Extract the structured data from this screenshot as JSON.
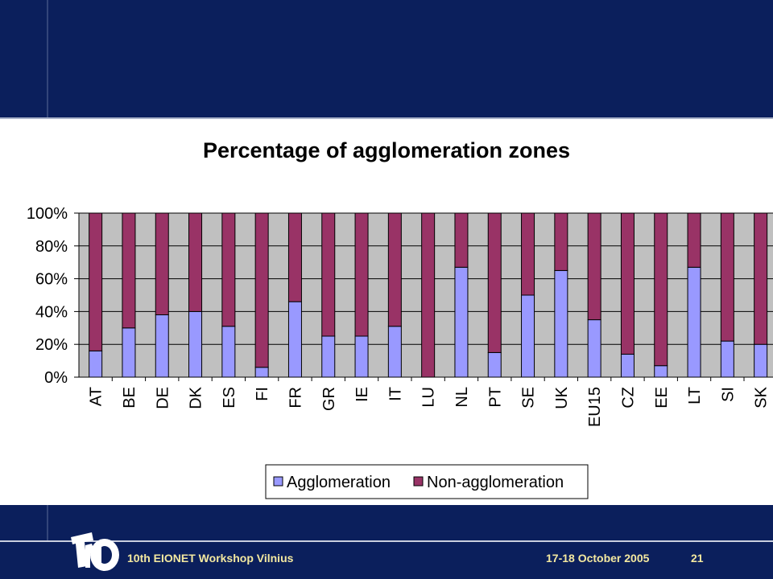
{
  "slide": {
    "footer_left": "10th EIONET Workshop Vilnius",
    "footer_date": "17-18 October 2005",
    "page_number": "21",
    "logo_text": "TNO"
  },
  "colors": {
    "band": "#0b1f5c",
    "plot_bg": "#c0c0c0",
    "agglomeration": "#9999ff",
    "non_agglomeration": "#993366",
    "footer_text": "#f4e9a0"
  },
  "chart_data": {
    "type": "bar",
    "stacked": true,
    "title": "Percentage of agglomeration zones",
    "xlabel": "",
    "ylabel": "",
    "ylim": [
      0,
      100
    ],
    "yticks": [
      "0%",
      "20%",
      "40%",
      "60%",
      "80%",
      "100%"
    ],
    "grid": true,
    "legend_position": "bottom",
    "categories": [
      "AT",
      "BE",
      "DE",
      "DK",
      "ES",
      "FI",
      "FR",
      "GR",
      "IE",
      "IT",
      "LU",
      "NL",
      "PT",
      "SE",
      "UK",
      "EU15",
      "CZ",
      "EE",
      "LT",
      "SI",
      "SK"
    ],
    "series": [
      {
        "name": "Agglomeration",
        "color": "#9999ff",
        "values": [
          16,
          30,
          38,
          40,
          31,
          6,
          46,
          25,
          25,
          31,
          0,
          67,
          15,
          50,
          65,
          35,
          14,
          7,
          67,
          22,
          20
        ]
      },
      {
        "name": "Non-agglomeration",
        "color": "#993366",
        "values": [
          84,
          70,
          62,
          60,
          69,
          94,
          54,
          75,
          75,
          69,
          100,
          33,
          85,
          50,
          35,
          65,
          86,
          93,
          33,
          78,
          80
        ]
      }
    ]
  }
}
